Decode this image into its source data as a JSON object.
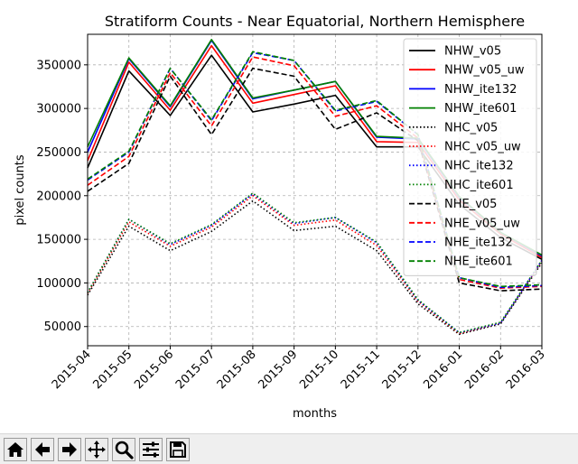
{
  "chart_data": {
    "type": "line",
    "title": "Stratiform Counts - Near Equatorial, Northern Hemisphere",
    "xlabel": "months",
    "ylabel": "pixel counts",
    "categories": [
      "2015-04",
      "2015-05",
      "2015-06",
      "2015-07",
      "2015-08",
      "2015-09",
      "2015-10",
      "2015-11",
      "2015-12",
      "2016-01",
      "2016-02",
      "2016-03"
    ],
    "ylim": [
      28000,
      385000
    ],
    "yticks": [
      50000,
      100000,
      150000,
      200000,
      250000,
      300000,
      350000
    ],
    "grid": true,
    "legend_position": "top-right",
    "series": [
      {
        "name": "NHW_v05",
        "color": "#000000",
        "dash": "solid",
        "values": [
          232000,
          343000,
          292000,
          361000,
          296000,
          305000,
          315000,
          256000,
          256000,
          190000,
          152000,
          127000
        ]
      },
      {
        "name": "NHW_v05_uw",
        "color": "#ff0000",
        "dash": "solid",
        "values": [
          240000,
          353000,
          298000,
          372000,
          306000,
          316000,
          326000,
          262000,
          261000,
          195000,
          156000,
          129000
        ]
      },
      {
        "name": "NHW_ite132",
        "color": "#0000ff",
        "dash": "solid",
        "values": [
          250000,
          357000,
          302000,
          378000,
          311000,
          321000,
          331000,
          267000,
          265000,
          198000,
          158000,
          131000
        ]
      },
      {
        "name": "NHW_ite601",
        "color": "#008000",
        "dash": "solid",
        "values": [
          256000,
          358000,
          303000,
          379000,
          312000,
          321000,
          331000,
          268000,
          266000,
          199000,
          158000,
          132000
        ]
      },
      {
        "name": "NHC_v05",
        "color": "#000000",
        "dash": "dotted",
        "values": [
          86000,
          165000,
          137000,
          159000,
          194000,
          160000,
          165000,
          137000,
          76000,
          41000,
          53000,
          123000
        ]
      },
      {
        "name": "NHC_v05_uw",
        "color": "#ff0000",
        "dash": "dotted",
        "values": [
          88000,
          170000,
          142000,
          164000,
          200000,
          166000,
          172000,
          143000,
          79000,
          42000,
          54000,
          125000
        ]
      },
      {
        "name": "NHC_ite132",
        "color": "#0000ff",
        "dash": "dotted",
        "values": [
          89000,
          173000,
          144000,
          166000,
          202000,
          168000,
          175000,
          146000,
          80000,
          43000,
          54000,
          126000
        ]
      },
      {
        "name": "NHC_ite601",
        "color": "#008000",
        "dash": "dotted",
        "values": [
          89000,
          173000,
          145000,
          167000,
          203000,
          169000,
          175000,
          147000,
          81000,
          43000,
          55000,
          126000
        ]
      },
      {
        "name": "NHE_v05",
        "color": "#000000",
        "dash": "dashed",
        "values": [
          205000,
          237000,
          337000,
          270000,
          346000,
          337000,
          276000,
          295000,
          263000,
          100000,
          91000,
          93000
        ]
      },
      {
        "name": "NHE_v05_uw",
        "color": "#ff0000",
        "dash": "dashed",
        "values": [
          212000,
          245000,
          341000,
          280000,
          359000,
          349000,
          291000,
          303000,
          266000,
          104000,
          94000,
          96000
        ]
      },
      {
        "name": "NHE_ite132",
        "color": "#0000ff",
        "dash": "dashed",
        "values": [
          218000,
          250000,
          346000,
          286000,
          364000,
          355000,
          297000,
          308000,
          270000,
          106000,
          95000,
          97000
        ]
      },
      {
        "name": "NHE_ite601",
        "color": "#008000",
        "dash": "dashed",
        "values": [
          219000,
          251000,
          346000,
          287000,
          365000,
          355000,
          298000,
          309000,
          270000,
          106000,
          96000,
          98000
        ]
      }
    ]
  },
  "toolbar": {
    "buttons": [
      "home-icon",
      "back-arrow-icon",
      "forward-arrow-icon",
      "pan-icon",
      "zoom-icon",
      "configure-subplots-icon",
      "save-icon"
    ]
  }
}
